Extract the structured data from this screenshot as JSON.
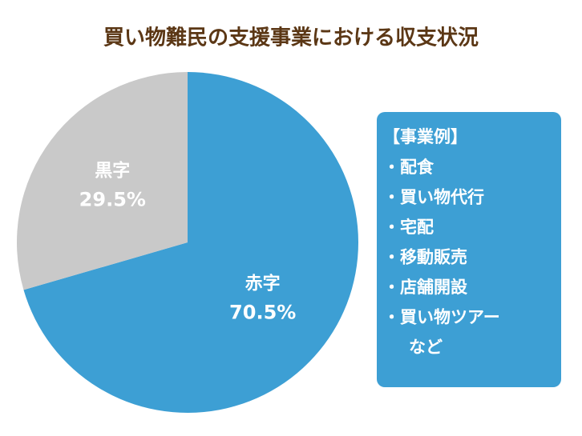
{
  "chart_data": {
    "type": "pie",
    "title": "買い物難民の支援事業における収支状況",
    "categories": [
      "赤字",
      "黒字"
    ],
    "values": [
      70.5,
      29.5
    ],
    "value_labels": [
      "70.5%",
      "29.5%"
    ],
    "colors": [
      "#3d9fd4",
      "#c9c9c9"
    ],
    "annotation": {
      "heading": "【事業例】",
      "items": [
        "・配食",
        "・買い物代行",
        "・宅配",
        "・移動販売",
        "・店舗開設",
        "・買い物ツアー",
        "など"
      ]
    }
  }
}
